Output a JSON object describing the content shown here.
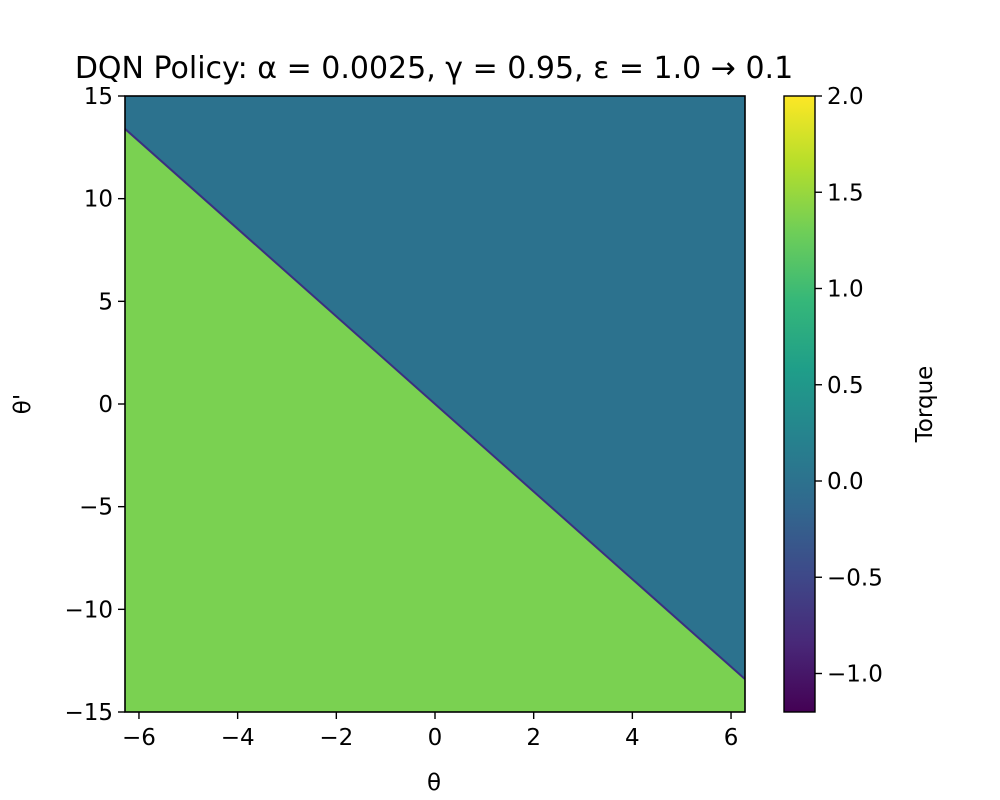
{
  "chart_data": {
    "type": "heatmap",
    "title": "DQN Policy: α = 0.0025, γ = 0.95, ε = 1.0 → 0.1",
    "xlabel": "θ",
    "ylabel": "θ'",
    "xlim": [
      -6.283,
      6.283
    ],
    "ylim": [
      -15,
      15
    ],
    "x_ticks": [
      -6,
      -4,
      -2,
      0,
      2,
      4,
      6
    ],
    "y_ticks": [
      -15,
      -10,
      -5,
      0,
      5,
      10,
      15
    ],
    "x_tick_labels": [
      "−6",
      "−4",
      "−2",
      "0",
      "2",
      "4",
      "6"
    ],
    "y_tick_labels": [
      "−15",
      "−10",
      "−5",
      "0",
      "5",
      "10",
      "15"
    ],
    "regions": [
      {
        "label": "upper-right",
        "value": 0.0,
        "color": "#2c728e",
        "polygon": [
          [
            -6.283,
            13.4
          ],
          [
            -6.283,
            15
          ],
          [
            6.283,
            15
          ],
          [
            6.283,
            -13.4
          ]
        ]
      },
      {
        "label": "lower-left",
        "value": 1.4,
        "color": "#7ad151",
        "polygon": [
          [
            -6.283,
            13.4
          ],
          [
            6.283,
            -13.4
          ],
          [
            6.283,
            -15
          ],
          [
            -6.283,
            -15
          ]
        ]
      }
    ],
    "boundary": {
      "from": [
        -6.283,
        13.4
      ],
      "to": [
        6.283,
        -13.4
      ],
      "color": "#3b2f80"
    },
    "colorbar": {
      "label": "Torque",
      "range": [
        -1.2,
        2.0
      ],
      "ticks": [
        -1.0,
        -0.5,
        0.0,
        0.5,
        1.0,
        1.5,
        2.0
      ],
      "tick_labels": [
        "−1.0",
        "−0.5",
        "0.0",
        "0.5",
        "1.0",
        "1.5",
        "2.0"
      ],
      "colormap": [
        "#440154",
        "#482878",
        "#3e4989",
        "#31688e",
        "#26828e",
        "#1f9e89",
        "#35b779",
        "#6ece58",
        "#b5de2b",
        "#fde725"
      ]
    }
  }
}
